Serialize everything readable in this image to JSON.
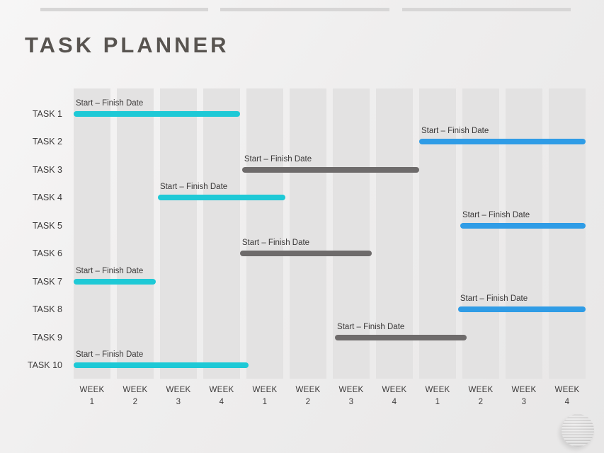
{
  "slide": {
    "title": "TASK PLANNER"
  },
  "chart_data": {
    "type": "bar",
    "subtype": "gantt",
    "title": "TASK PLANNER",
    "bar_label": "Start – Finish Date",
    "x_axis": {
      "unit": "WEEK",
      "labels": [
        "1",
        "2",
        "3",
        "4",
        "1",
        "2",
        "3",
        "4",
        "1",
        "2",
        "3",
        "4"
      ],
      "range": [
        0,
        12
      ]
    },
    "tasks": [
      {
        "name": "TASK 1",
        "start_week": 0.0,
        "end_week": 3.85,
        "color": "cyan"
      },
      {
        "name": "TASK 2",
        "start_week": 8.0,
        "end_week": 11.85,
        "color": "blue"
      },
      {
        "name": "TASK 3",
        "start_week": 3.9,
        "end_week": 8.0,
        "color": "gray"
      },
      {
        "name": "TASK 4",
        "start_week": 1.95,
        "end_week": 4.9,
        "color": "cyan"
      },
      {
        "name": "TASK 5",
        "start_week": 8.95,
        "end_week": 11.85,
        "color": "blue"
      },
      {
        "name": "TASK 6",
        "start_week": 3.85,
        "end_week": 6.9,
        "color": "gray"
      },
      {
        "name": "TASK 7",
        "start_week": 0.0,
        "end_week": 1.9,
        "color": "cyan"
      },
      {
        "name": "TASK 8",
        "start_week": 8.9,
        "end_week": 11.85,
        "color": "blue"
      },
      {
        "name": "TASK 9",
        "start_week": 6.05,
        "end_week": 9.1,
        "color": "gray"
      },
      {
        "name": "TASK 10",
        "start_week": 0.0,
        "end_week": 4.05,
        "color": "cyan"
      }
    ],
    "colors": {
      "cyan": "#1ec9d6",
      "blue": "#2f9ce6",
      "gray": "#6e6b6b"
    },
    "legend": "none",
    "grid": "striped-week-columns"
  },
  "decor": {
    "logo": "striped-ball"
  }
}
